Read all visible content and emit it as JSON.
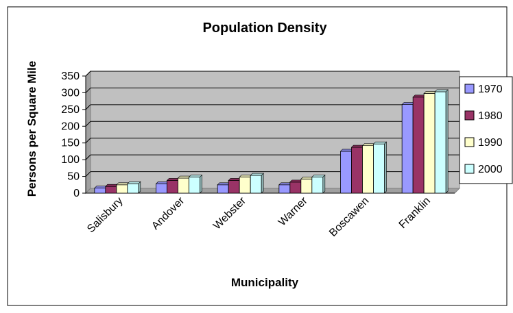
{
  "chart_data": {
    "type": "bar",
    "title": "Population Density",
    "xlabel": "Municipality",
    "ylabel": "Persons per Square Mile",
    "categories": [
      "Salisbury",
      "Andover",
      "Webster",
      "Warner",
      "Boscawen",
      "Franklin"
    ],
    "series": [
      {
        "name": "1970",
        "values": [
          15,
          28,
          25,
          25,
          125,
          265
        ],
        "color": "#9999ff"
      },
      {
        "name": "1980",
        "values": [
          20,
          38,
          38,
          33,
          137,
          287
        ],
        "color": "#993366"
      },
      {
        "name": "1990",
        "values": [
          25,
          45,
          48,
          42,
          142,
          298
        ],
        "color": "#ffffcc"
      },
      {
        "name": "2000",
        "values": [
          28,
          48,
          53,
          48,
          147,
          303
        ],
        "color": "#ccffff"
      }
    ],
    "ylim": [
      0,
      350
    ],
    "yticks": [
      0,
      50,
      100,
      150,
      200,
      250,
      300,
      350
    ],
    "grid": true,
    "legend_position": "right",
    "plot_background": "#c0c0c0"
  }
}
